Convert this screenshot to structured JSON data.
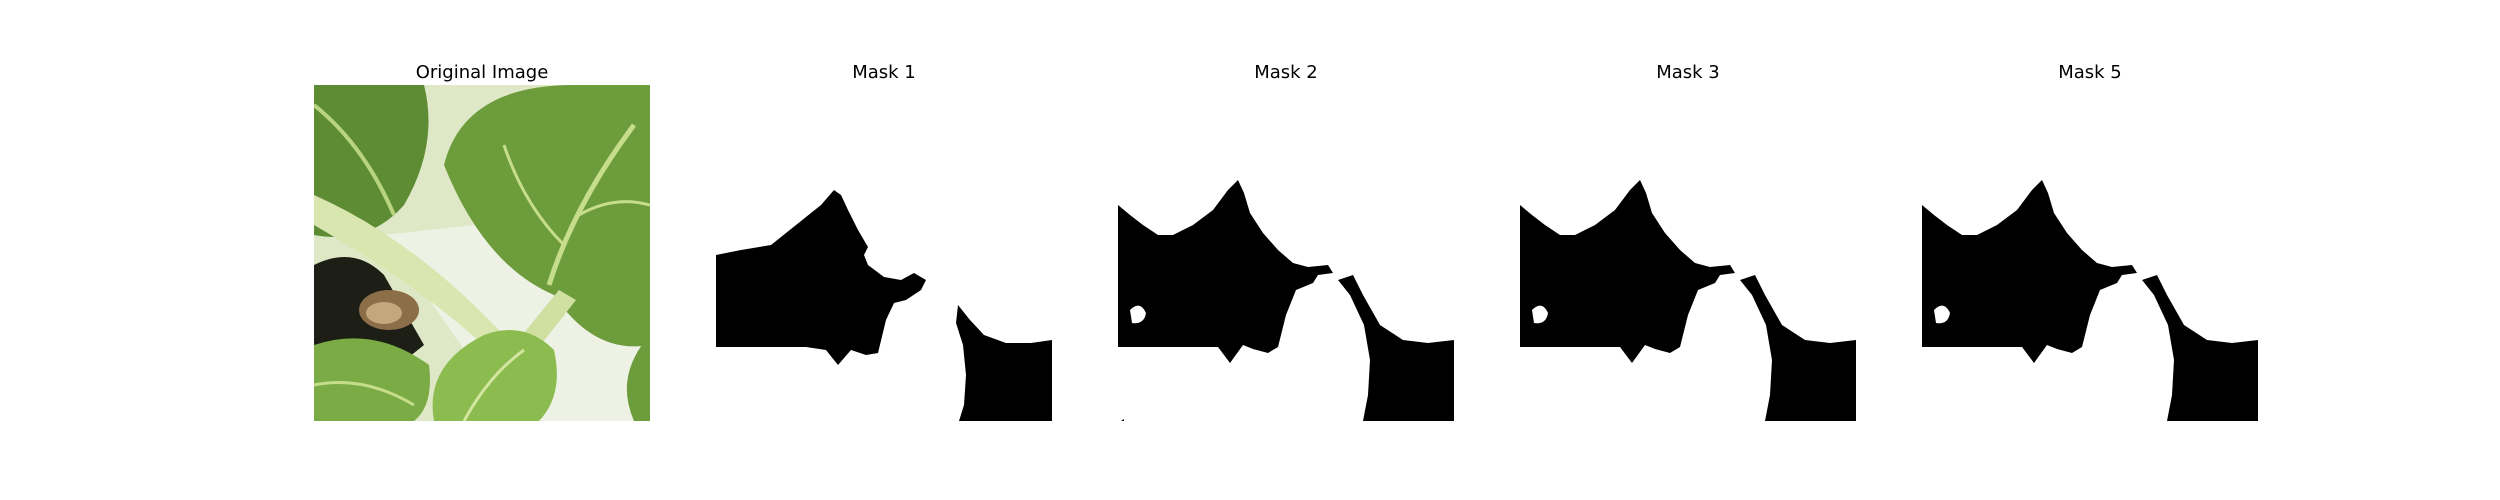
{
  "figure": {
    "panels": [
      {
        "title": "Original Image",
        "kind": "photo",
        "description_icon": "plant-leaves-photo"
      },
      {
        "title": "Mask 1",
        "kind": "mask",
        "variant": 1
      },
      {
        "title": "Mask 2",
        "kind": "mask",
        "variant": 2
      },
      {
        "title": "Mask 3",
        "kind": "mask",
        "variant": 2
      },
      {
        "title": "Mask 5",
        "kind": "mask",
        "variant": 2
      }
    ]
  },
  "colors": {
    "background": "#ffffff",
    "mask_fill": "#000000",
    "leaf_dark": "#4f7a2c",
    "leaf_mid": "#78a640",
    "leaf_light": "#a8cc6a",
    "stem": "#d9e6b0"
  }
}
